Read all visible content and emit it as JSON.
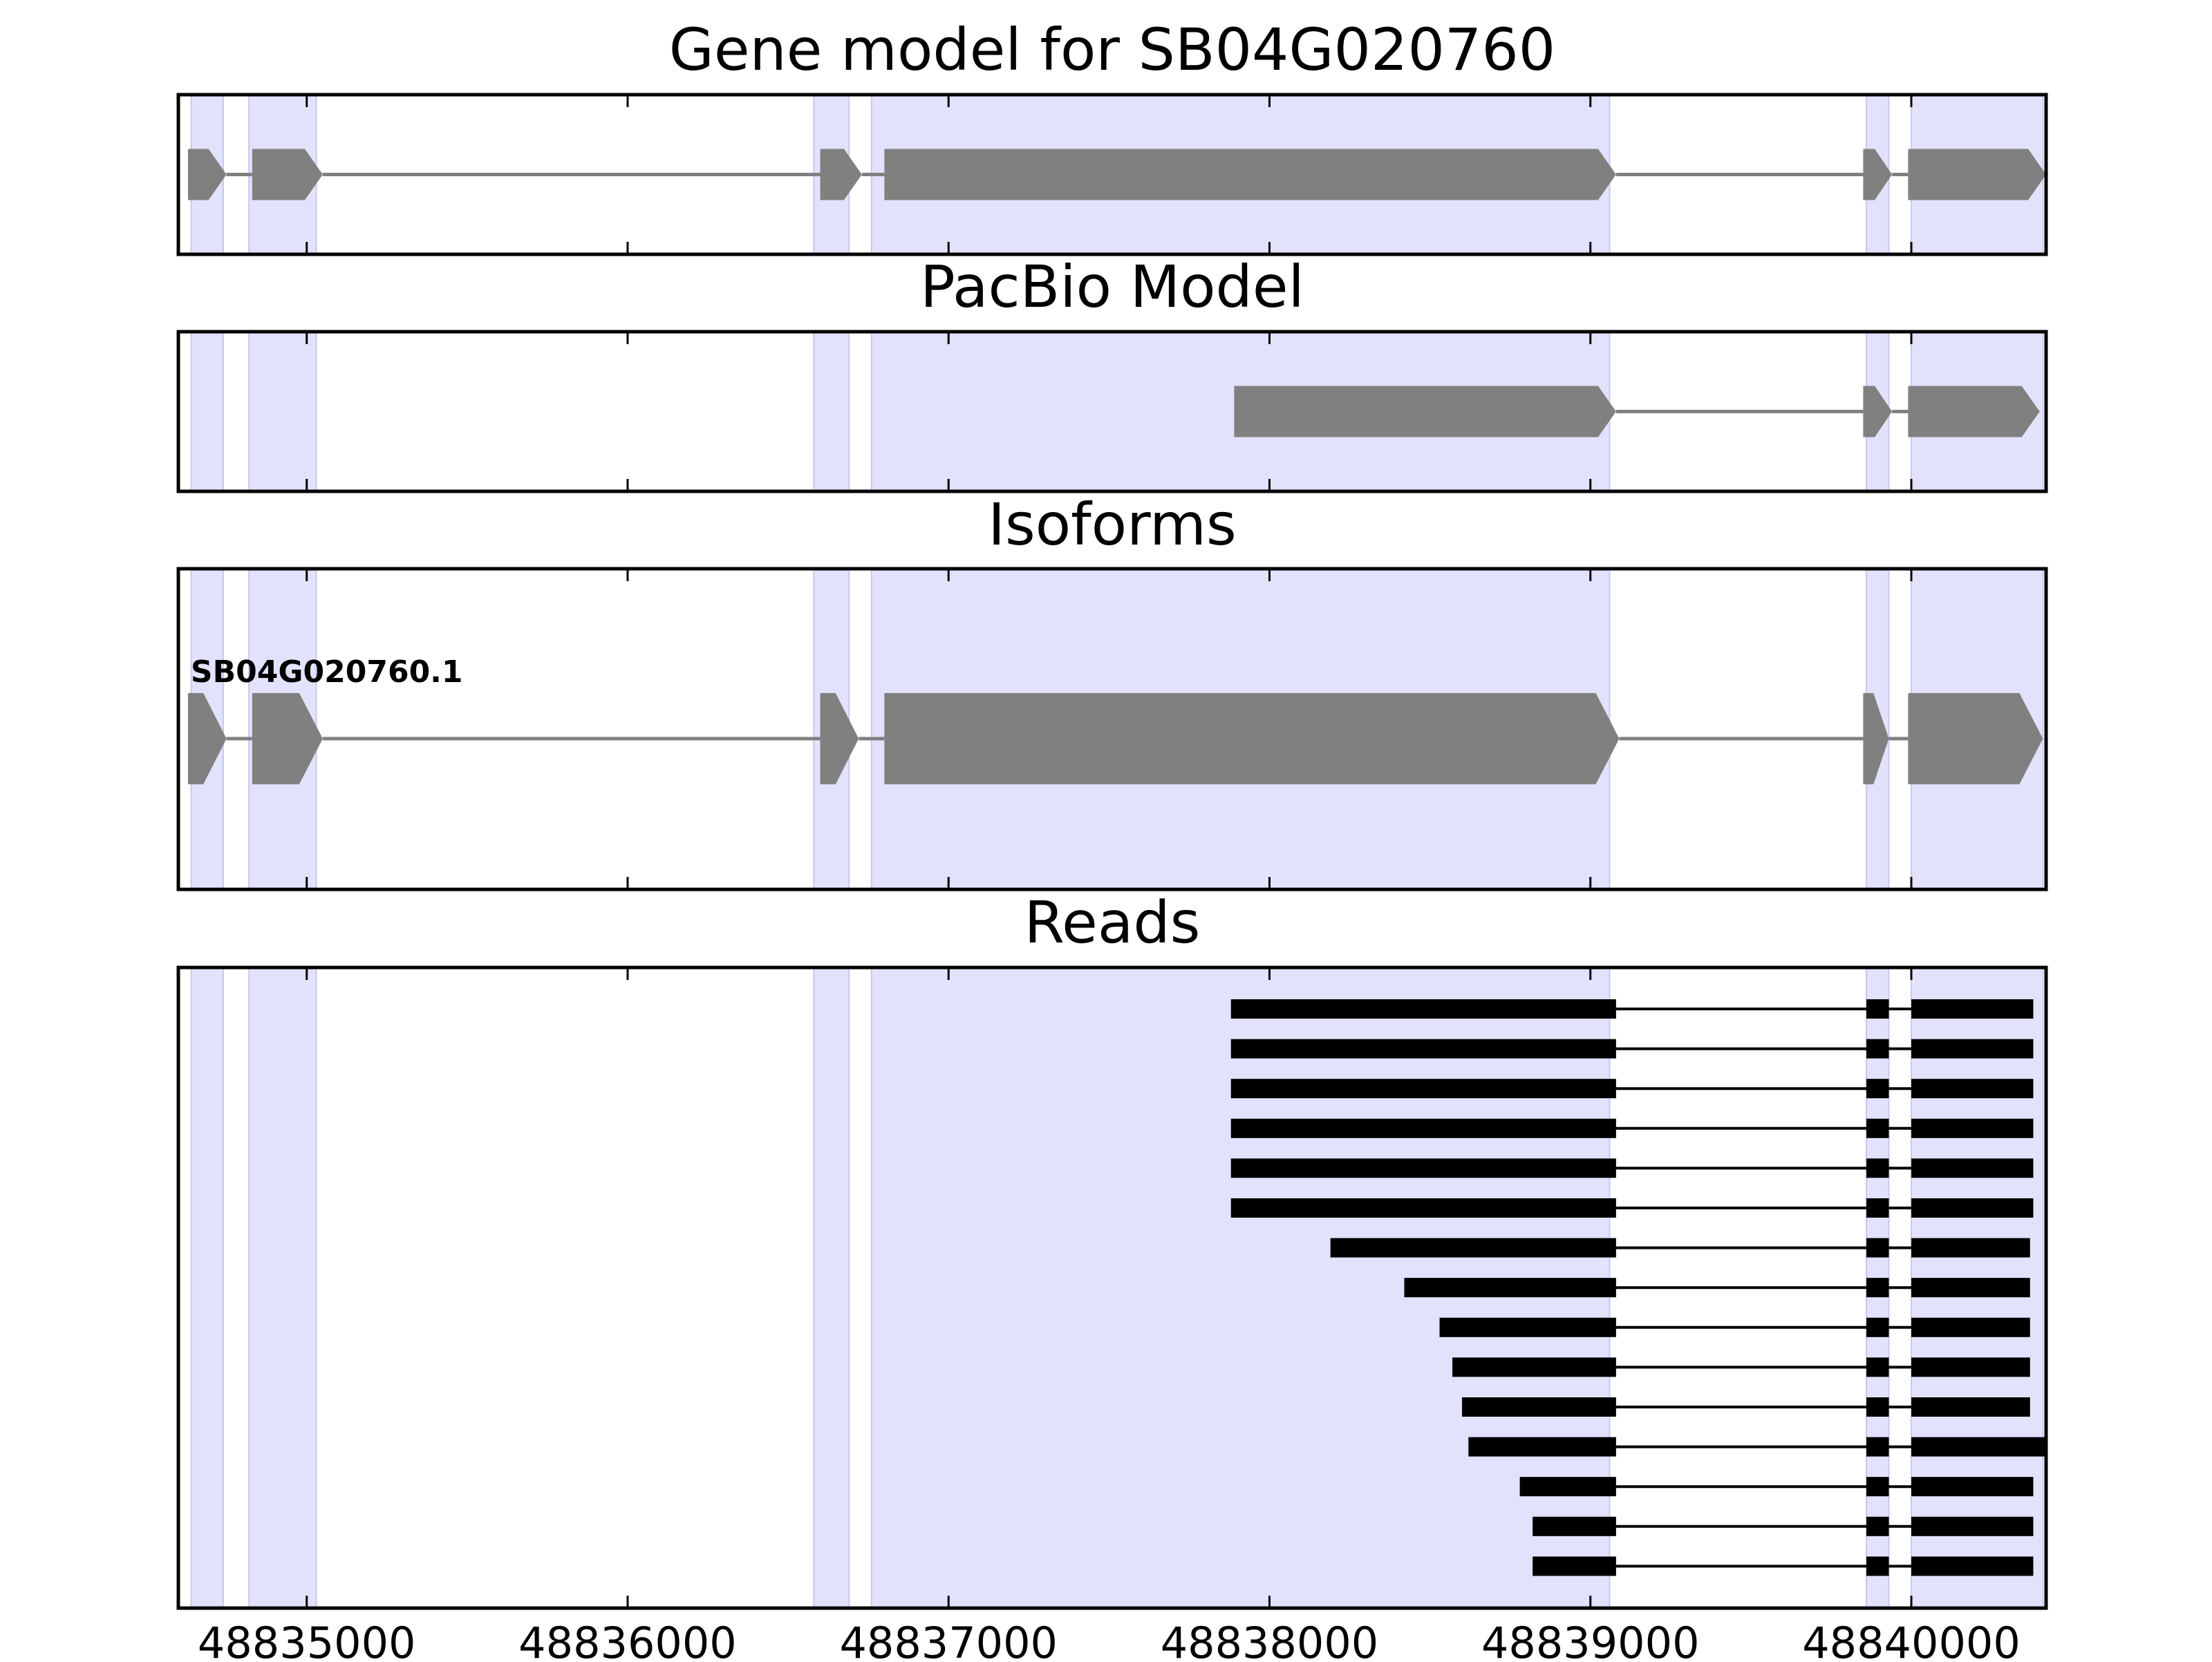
{
  "chart_data": {
    "type": "gene-track",
    "x_axis": {
      "min": 48834600,
      "max": 48840420,
      "ticks": [
        48835000,
        48836000,
        48837000,
        48838000,
        48839000,
        48840000
      ],
      "tick_labels": [
        "48835000",
        "48836000",
        "48837000",
        "48838000",
        "48839000",
        "48840000"
      ]
    },
    "exon_regions": [
      [
        48834640,
        48834740
      ],
      [
        48834820,
        48835030
      ],
      [
        48836580,
        48836690
      ],
      [
        48836760,
        48839060
      ],
      [
        48839860,
        48839930
      ],
      [
        48840000,
        48840410
      ]
    ],
    "panels": [
      {
        "title": "Gene model for SB04G020760",
        "kind": "model",
        "features": [
          {
            "exons": [
              [
                48834630,
                48834750
              ],
              [
                48834830,
                48835050
              ],
              [
                48836600,
                48836730
              ],
              [
                48836800,
                48839080
              ],
              [
                48839850,
                48839940
              ],
              [
                48839990,
                48840420
              ]
            ]
          }
        ]
      },
      {
        "title": "PacBio Model",
        "kind": "model",
        "features": [
          {
            "exons": [
              [
                48837890,
                48839080
              ],
              [
                48839850,
                48839940
              ],
              [
                48839990,
                48840400
              ]
            ]
          }
        ]
      },
      {
        "title": "Isoforms",
        "kind": "isoform",
        "features": [
          {
            "label": "SB04G020760.1",
            "exons": [
              [
                48834630,
                48834750
              ],
              [
                48834830,
                48835050
              ],
              [
                48836600,
                48836720
              ],
              [
                48836800,
                48839090
              ],
              [
                48839850,
                48839930
              ],
              [
                48839990,
                48840410
              ]
            ]
          }
        ]
      },
      {
        "title": "Reads",
        "kind": "reads",
        "features": [
          {
            "exons": [
              [
                48837880,
                48839080
              ],
              [
                48839860,
                48839930
              ],
              [
                48840000,
                48840380
              ]
            ]
          },
          {
            "exons": [
              [
                48837880,
                48839080
              ],
              [
                48839860,
                48839930
              ],
              [
                48840000,
                48840380
              ]
            ]
          },
          {
            "exons": [
              [
                48837880,
                48839080
              ],
              [
                48839860,
                48839930
              ],
              [
                48840000,
                48840380
              ]
            ]
          },
          {
            "exons": [
              [
                48837880,
                48839080
              ],
              [
                48839860,
                48839930
              ],
              [
                48840000,
                48840380
              ]
            ]
          },
          {
            "exons": [
              [
                48837880,
                48839080
              ],
              [
                48839860,
                48839930
              ],
              [
                48840000,
                48840380
              ]
            ]
          },
          {
            "exons": [
              [
                48837880,
                48839080
              ],
              [
                48839860,
                48839930
              ],
              [
                48840000,
                48840380
              ]
            ]
          },
          {
            "exons": [
              [
                48838190,
                48839080
              ],
              [
                48839860,
                48839930
              ],
              [
                48840000,
                48840370
              ]
            ]
          },
          {
            "exons": [
              [
                48838420,
                48839080
              ],
              [
                48839860,
                48839930
              ],
              [
                48840000,
                48840370
              ]
            ]
          },
          {
            "exons": [
              [
                48838530,
                48839080
              ],
              [
                48839860,
                48839930
              ],
              [
                48840000,
                48840370
              ]
            ]
          },
          {
            "exons": [
              [
                48838570,
                48839080
              ],
              [
                48839860,
                48839930
              ],
              [
                48840000,
                48840370
              ]
            ]
          },
          {
            "exons": [
              [
                48838600,
                48839080
              ],
              [
                48839860,
                48839930
              ],
              [
                48840000,
                48840370
              ]
            ]
          },
          {
            "exons": [
              [
                48838620,
                48839080
              ],
              [
                48839860,
                48839930
              ],
              [
                48840000,
                48840420
              ]
            ]
          },
          {
            "exons": [
              [
                48838780,
                48839080
              ],
              [
                48839860,
                48839930
              ],
              [
                48840000,
                48840380
              ]
            ]
          },
          {
            "exons": [
              [
                48838820,
                48839080
              ],
              [
                48839860,
                48839930
              ],
              [
                48840000,
                48840380
              ]
            ]
          },
          {
            "exons": [
              [
                48838820,
                48839080
              ],
              [
                48839860,
                48839930
              ],
              [
                48840000,
                48840380
              ]
            ]
          }
        ]
      }
    ]
  },
  "colors": {
    "exon_region": "#e2e2fc",
    "exon_region_edge": "#c8c8ee",
    "model_fill": "#808080",
    "intron": "#808080",
    "read_fill": "#000000",
    "axis": "#000000"
  }
}
